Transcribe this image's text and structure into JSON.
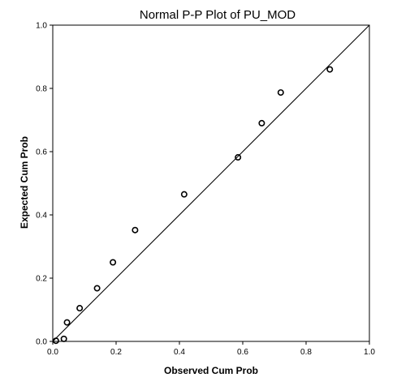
{
  "chart_data": {
    "type": "scatter",
    "title": "Normal P-P Plot of PU_MOD",
    "xlabel": "Observed Cum Prob",
    "ylabel": "Expected Cum Prob",
    "xlim": [
      0.0,
      1.0
    ],
    "ylim": [
      0.0,
      1.0
    ],
    "x_ticks": [
      "0.0",
      "0.2",
      "0.4",
      "0.6",
      "0.8",
      "1.0"
    ],
    "y_ticks": [
      "0.0",
      "0.2",
      "0.4",
      "0.6",
      "0.8",
      "1.0"
    ],
    "grid": false,
    "reference_line": {
      "from": [
        0.0,
        0.0
      ],
      "to": [
        1.0,
        1.0
      ]
    },
    "points": [
      {
        "x": 0.01,
        "y": 0.002
      },
      {
        "x": 0.035,
        "y": 0.008
      },
      {
        "x": 0.045,
        "y": 0.06
      },
      {
        "x": 0.085,
        "y": 0.105
      },
      {
        "x": 0.14,
        "y": 0.168
      },
      {
        "x": 0.19,
        "y": 0.25
      },
      {
        "x": 0.26,
        "y": 0.352
      },
      {
        "x": 0.415,
        "y": 0.465
      },
      {
        "x": 0.585,
        "y": 0.582
      },
      {
        "x": 0.66,
        "y": 0.69
      },
      {
        "x": 0.72,
        "y": 0.787
      },
      {
        "x": 0.875,
        "y": 0.86
      }
    ],
    "colors": {
      "frame": "#000000",
      "reference_line": "#000000",
      "marker": "#000000"
    }
  }
}
